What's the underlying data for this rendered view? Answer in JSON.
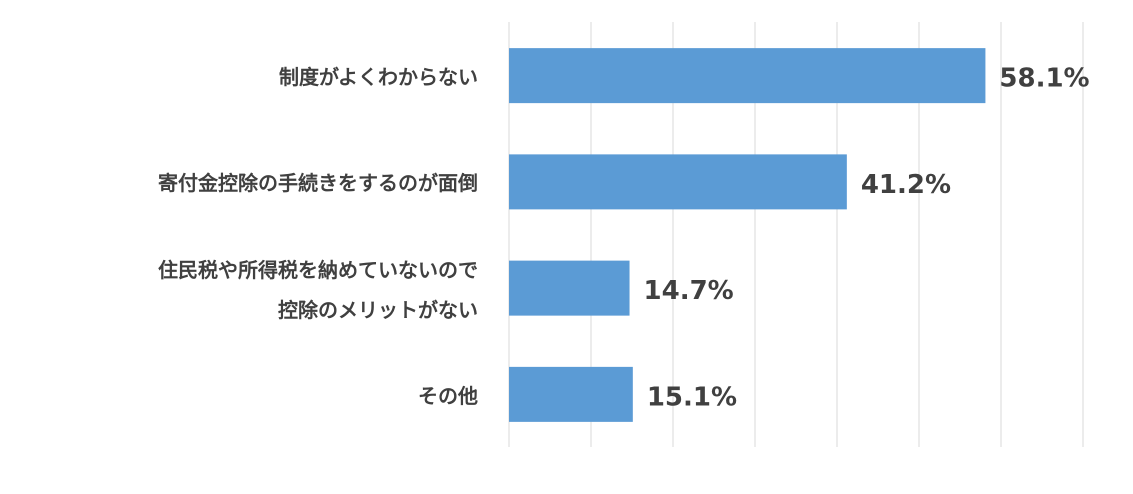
{
  "chart_data": {
    "type": "bar",
    "orientation": "horizontal",
    "categories": [
      "制度がよくわからない",
      "寄付金控除の手続きをするのが面倒",
      "住民税や所得税を納めていないので\n控除のメリットがない",
      "その他"
    ],
    "values": [
      58.1,
      41.2,
      14.7,
      15.1
    ],
    "value_labels": [
      "58.1%",
      "41.2%",
      "14.7%",
      "15.1%"
    ],
    "color": "#5b9bd5",
    "xlim": [
      0,
      70
    ],
    "xticks": [
      0,
      10,
      20,
      30,
      40,
      50,
      60,
      70
    ],
    "grid": true
  }
}
